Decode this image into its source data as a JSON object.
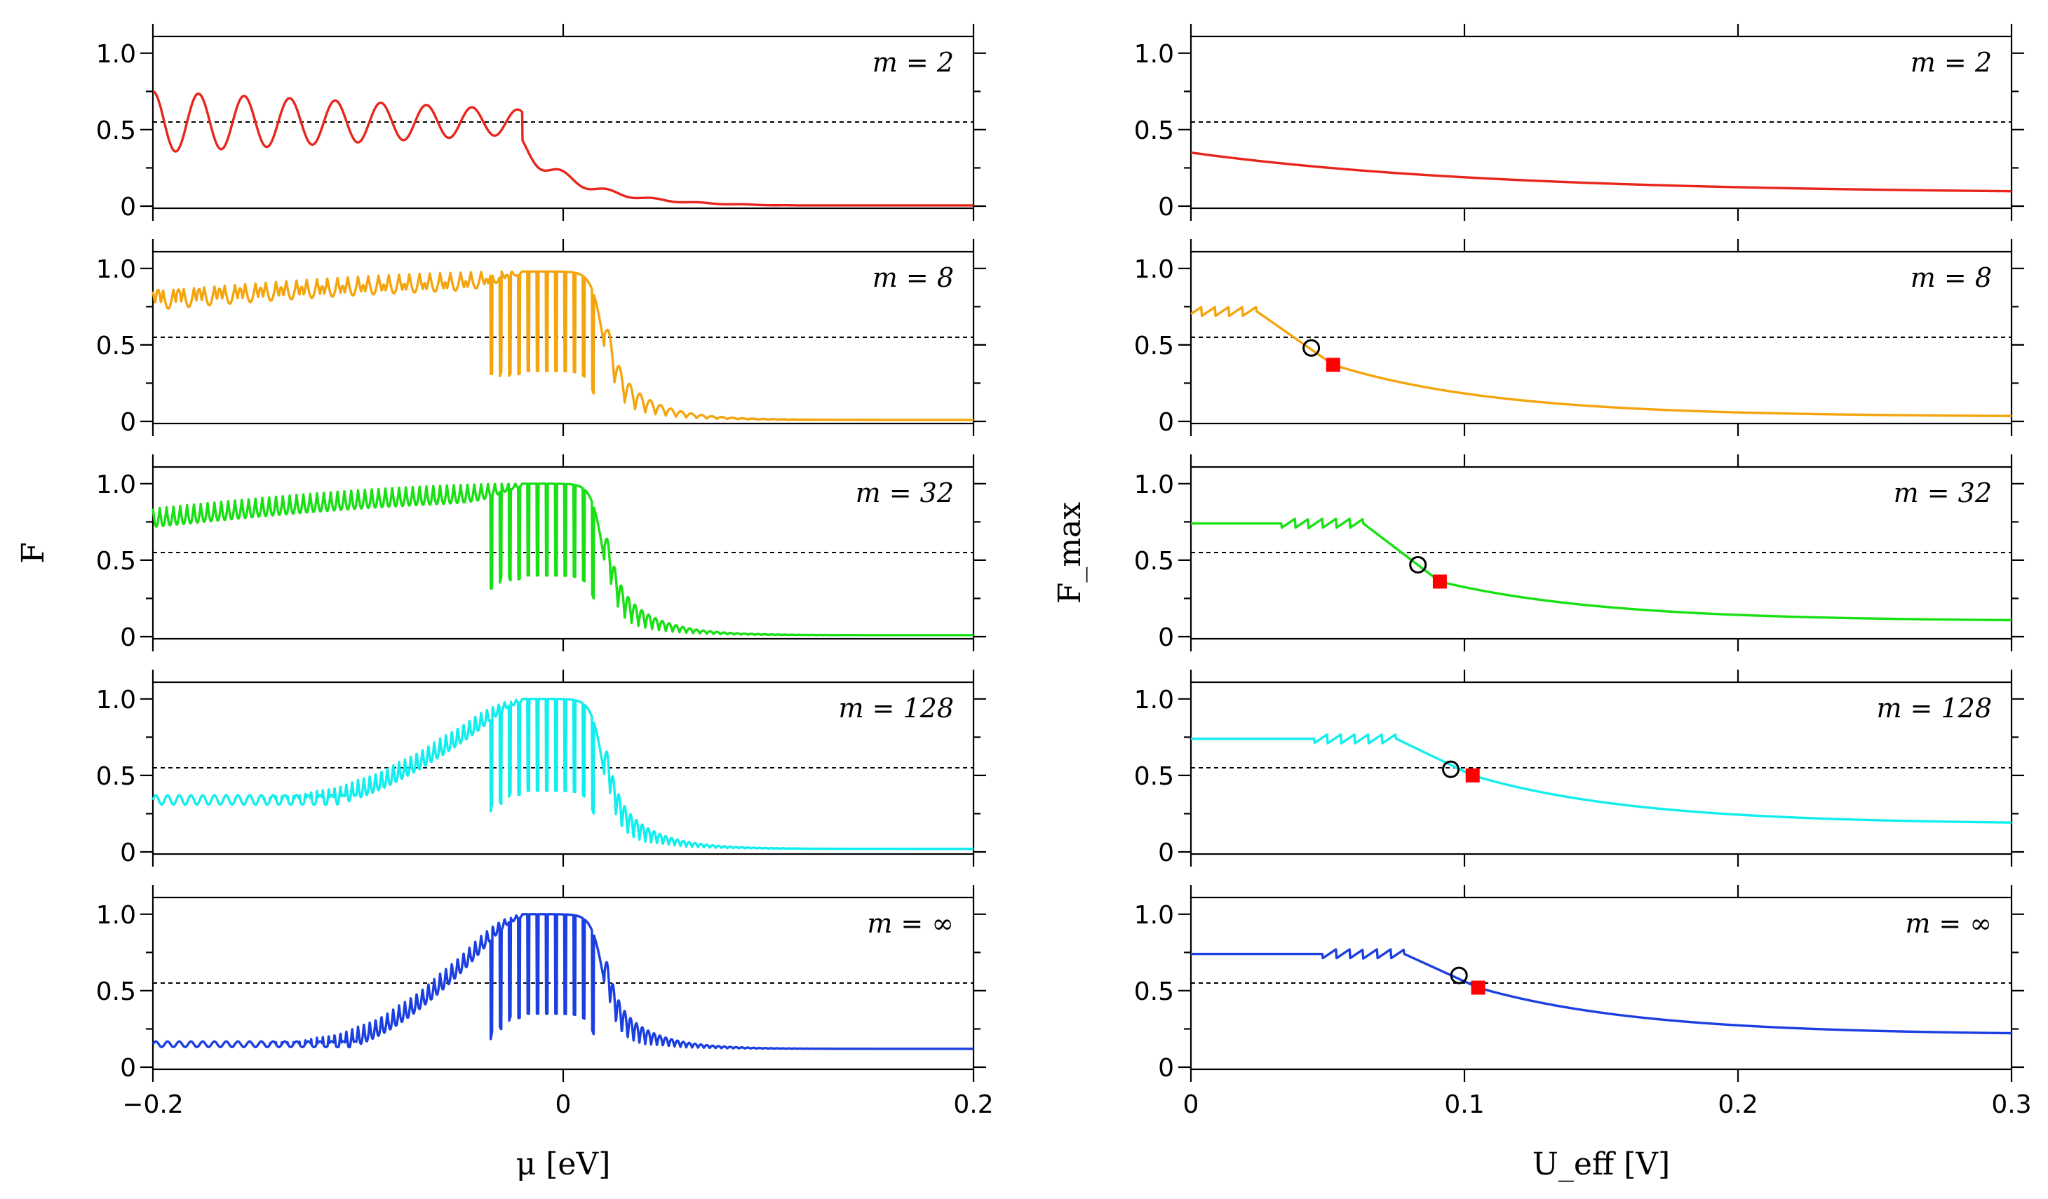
{
  "chart_data": [
    {
      "type": "line",
      "column": "left",
      "xlabel": "μ [eV]",
      "ylabel": "F",
      "xlim": [
        -0.2,
        0.2
      ],
      "ylim": [
        0,
        1.1
      ],
      "xticks": [
        -0.2,
        0,
        0.2
      ],
      "xtick_labels": [
        "−0.2",
        "0",
        "0.2"
      ],
      "yticks": [
        0,
        0.5,
        1.0
      ],
      "ytick_labels": [
        "0",
        "0.5",
        "1.0"
      ],
      "reference_line_y": 0.55,
      "panels": [
        {
          "label": "m = 2",
          "color": "#e8251b",
          "base_low": 0.55,
          "osc_amp": 0.2,
          "env_width": 0.09,
          "osc_cycles": 16,
          "dip_depth": 0,
          "plateau": 0.0,
          "tail": 0.01
        },
        {
          "label": "m = 8",
          "color": "#f4a40d",
          "base_low": 0.62,
          "osc_amp": 0.32,
          "env_width": 0.2,
          "osc_cycles": 40,
          "dip_depth": 0.65,
          "plateau": 0.98,
          "tail": 0.01
        },
        {
          "label": "m = 32",
          "color": "#18e014",
          "base_low": 0.55,
          "osc_amp": 0.15,
          "env_width": 0.2,
          "osc_cycles": 60,
          "dip_depth": 0.6,
          "plateau": 1.0,
          "tail": 0.01
        },
        {
          "label": "m = 128",
          "color": "#12eeee",
          "base_low": 0.34,
          "osc_amp": 0.05,
          "env_width": 0.05,
          "osc_cycles": 70,
          "dip_depth": 0.6,
          "plateau": 1.0,
          "tail": 0.02
        },
        {
          "label": "m = ∞",
          "color": "#1b3fe0",
          "base_low": 0.15,
          "osc_amp": 0.03,
          "env_width": 0.045,
          "osc_cycles": 70,
          "dip_depth": 0.65,
          "plateau": 1.0,
          "tail": 0.12
        }
      ]
    },
    {
      "type": "line",
      "column": "right",
      "xlabel": "U_eff [V]",
      "ylabel": "F_max",
      "xlim": [
        0,
        0.3
      ],
      "ylim": [
        0,
        1.1
      ],
      "xticks": [
        0,
        0.1,
        0.2,
        0.3
      ],
      "xtick_labels": [
        "0",
        "0.1",
        "0.2",
        "0.3"
      ],
      "yticks": [
        0,
        0.5,
        1.0
      ],
      "ytick_labels": [
        "0",
        "0.5",
        "1.0"
      ],
      "reference_line_y": 0.55,
      "panels": [
        {
          "label": "m = 2",
          "color": "#e8251b",
          "start": 0.35,
          "end": 0.08,
          "circle": null,
          "square": null
        },
        {
          "label": "m = 8",
          "color": "#f4a40d",
          "start": 0.72,
          "end": 0.03,
          "circle": [
            0.044,
            0.48
          ],
          "square": [
            0.052,
            0.37
          ]
        },
        {
          "label": "m = 32",
          "color": "#18e014",
          "start": 0.74,
          "end": 0.1,
          "circle": [
            0.083,
            0.47
          ],
          "square": [
            0.091,
            0.36
          ]
        },
        {
          "label": "m = 128",
          "color": "#12eeee",
          "start": 0.74,
          "end": 0.18,
          "circle": [
            0.095,
            0.54
          ],
          "square": [
            0.103,
            0.5
          ]
        },
        {
          "label": "m = ∞",
          "color": "#1b3fe0",
          "start": 0.74,
          "end": 0.21,
          "circle": [
            0.098,
            0.6
          ],
          "square": [
            0.105,
            0.52
          ]
        }
      ]
    }
  ]
}
